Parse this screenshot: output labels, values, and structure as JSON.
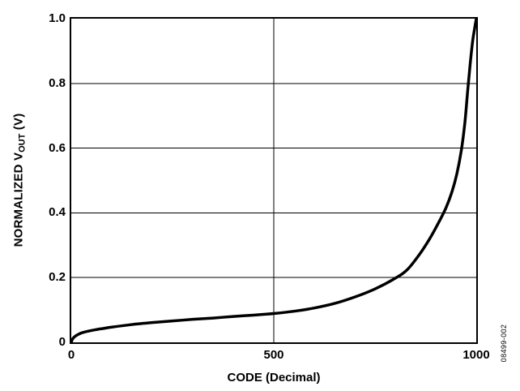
{
  "figure": {
    "id_label": "08499-002"
  },
  "colors": {
    "background": "#ffffff",
    "axis": "#000000",
    "grid": "#000000",
    "curve": "#000000",
    "text": "#000000"
  },
  "chart_data": {
    "type": "line",
    "title": "",
    "xlabel": "CODE (Decimal)",
    "ylabel": "NORMALIZED VOUT (V)",
    "ylabel_parts": {
      "main": "NORMALIZED V",
      "sub": "OUT",
      "unit": " (V)"
    },
    "xlim": [
      0,
      1000
    ],
    "ylim": [
      0,
      1.0
    ],
    "grid": true,
    "legend_position": "none",
    "x_ticks": [
      {
        "value": 0,
        "label": "0"
      },
      {
        "value": 500,
        "label": "500"
      },
      {
        "value": 1000,
        "label": "1000"
      }
    ],
    "y_ticks": [
      {
        "value": 1.0,
        "label": "1.0"
      },
      {
        "value": 0.8,
        "label": "0.8"
      },
      {
        "value": 0.6,
        "label": "0.6"
      },
      {
        "value": 0.4,
        "label": "0.4"
      },
      {
        "value": 0.2,
        "label": "0.2"
      },
      {
        "value": 0,
        "label": "0"
      }
    ],
    "line_width": 3.5,
    "series": [
      {
        "name": "normalized_vout_vs_code",
        "x": [
          0,
          3,
          8,
          15,
          25,
          40,
          60,
          80,
          100,
          150,
          200,
          250,
          300,
          350,
          400,
          450,
          500,
          550,
          600,
          650,
          700,
          750,
          800,
          830,
          860,
          885,
          905,
          925,
          940,
          952,
          963,
          972,
          979,
          985,
          991,
          996,
          1000
        ],
        "y": [
          0,
          0.01,
          0.017,
          0.023,
          0.029,
          0.034,
          0.039,
          0.043,
          0.047,
          0.055,
          0.061,
          0.066,
          0.071,
          0.075,
          0.08,
          0.084,
          0.089,
          0.096,
          0.106,
          0.12,
          0.14,
          0.165,
          0.198,
          0.225,
          0.272,
          0.32,
          0.365,
          0.415,
          0.465,
          0.52,
          0.592,
          0.68,
          0.78,
          0.86,
          0.93,
          0.97,
          1.0
        ]
      }
    ]
  }
}
